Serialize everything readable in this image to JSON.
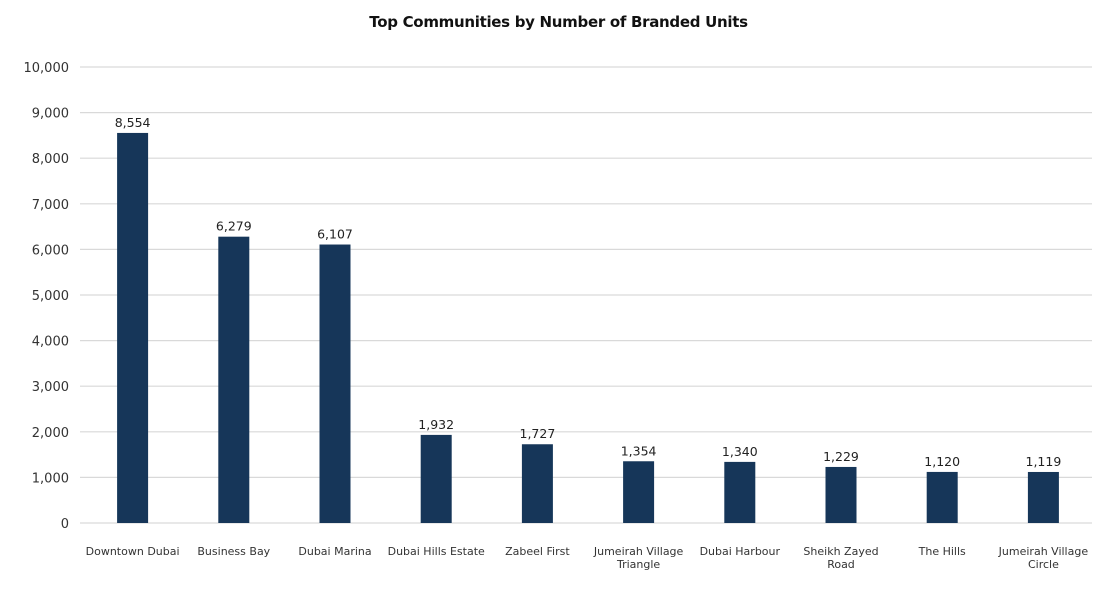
{
  "chart_data": {
    "type": "bar",
    "title": "Top Communities by Number of Branded Units",
    "xlabel": "",
    "ylabel": "",
    "categories": [
      [
        "Downtown Dubai"
      ],
      [
        "Business Bay"
      ],
      [
        "Dubai Marina"
      ],
      [
        "Dubai Hills Estate"
      ],
      [
        "Zabeel First"
      ],
      [
        "Jumeirah Village",
        "Triangle"
      ],
      [
        "Dubai Harbour"
      ],
      [
        "Sheikh Zayed",
        "Road"
      ],
      [
        "The Hills"
      ],
      [
        "Jumeirah Village",
        "Circle"
      ]
    ],
    "values": [
      8554,
      6279,
      6107,
      1932,
      1727,
      1354,
      1340,
      1229,
      1120,
      1119
    ],
    "data_labels": [
      "8,554",
      "6,279",
      "6,107",
      "1,932",
      "1,727",
      "1,354",
      "1,340",
      "1,229",
      "1,120",
      "1,119"
    ],
    "ylim": [
      0,
      10000
    ],
    "yticks": [
      0,
      1000,
      2000,
      3000,
      4000,
      5000,
      6000,
      7000,
      8000,
      9000,
      10000
    ],
    "ytick_labels": [
      "0",
      "1,000",
      "2,000",
      "3,000",
      "4,000",
      "5,000",
      "6,000",
      "7,000",
      "8,000",
      "9,000",
      "10,000"
    ],
    "grid": true,
    "legend": "none",
    "bar_color": "#163659"
  }
}
